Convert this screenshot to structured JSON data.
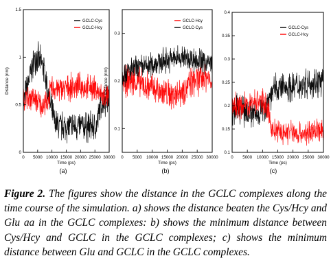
{
  "chart_data": [
    {
      "type": "line",
      "panel_label": "(a)",
      "xlabel": "Time (ps)",
      "ylabel": "Distance (nm)",
      "xlim": [
        0,
        30000
      ],
      "ylim": [
        0,
        1.5
      ],
      "xticks": [
        0,
        5000,
        10000,
        15000,
        20000,
        25000,
        30000
      ],
      "yticks": [
        0,
        0.5,
        1,
        1.5
      ],
      "ytick_labels": [
        "0",
        "0.5",
        "1",
        "1.5"
      ],
      "grid": false,
      "legend_position": "top-right",
      "series": [
        {
          "name": "GCLC-Cys",
          "color": "#000000",
          "x": [
            0,
            3000,
            4500,
            5500,
            7000,
            9000,
            11000,
            13000,
            15000,
            18000,
            21000,
            24000,
            25500,
            27000,
            28500,
            30000
          ],
          "y": [
            0.52,
            0.88,
            1.02,
            0.96,
            0.9,
            0.56,
            0.3,
            0.27,
            0.27,
            0.27,
            0.27,
            0.27,
            0.26,
            0.5,
            0.55,
            0.57
          ]
        },
        {
          "name": "GCLC-Hcy",
          "color": "#ff0000",
          "x": [
            0,
            3000,
            6000,
            8000,
            10000,
            13000,
            16000,
            19000,
            22000,
            25000,
            27000,
            30000
          ],
          "y": [
            0.55,
            0.58,
            0.5,
            0.5,
            0.68,
            0.66,
            0.68,
            0.7,
            0.68,
            0.67,
            0.6,
            0.57
          ]
        }
      ]
    },
    {
      "type": "line",
      "panel_label": "(b)",
      "xlabel": "Time (ps)",
      "ylabel": "Distance (nm)",
      "xlim": [
        0,
        30000
      ],
      "ylim": [
        0.05,
        0.35
      ],
      "xticks": [
        0,
        5000,
        10000,
        15000,
        20000,
        25000,
        30000
      ],
      "yticks": [
        0.1,
        0.2,
        0.3
      ],
      "ytick_labels": [
        "0.1",
        "0.2",
        "0.3"
      ],
      "grid": false,
      "legend_position": "top-right",
      "series": [
        {
          "name": "GCLC-Hcy",
          "color": "#ff0000",
          "x": [
            0,
            4000,
            8000,
            12000,
            16000,
            20000,
            24000,
            28000,
            30000
          ],
          "y": [
            0.2,
            0.2,
            0.19,
            0.18,
            0.17,
            0.18,
            0.2,
            0.21,
            0.2
          ]
        },
        {
          "name": "GCLC-Cys",
          "color": "#000000",
          "x": [
            0,
            4000,
            8000,
            12000,
            16000,
            20000,
            24000,
            28000,
            30000
          ],
          "y": [
            0.215,
            0.225,
            0.23,
            0.24,
            0.245,
            0.25,
            0.245,
            0.24,
            0.235
          ]
        }
      ]
    },
    {
      "type": "line",
      "panel_label": "(c)",
      "xlabel": "Time (ps)",
      "ylabel": "",
      "xlim": [
        0,
        30000
      ],
      "ylim": [
        0.1,
        0.4
      ],
      "xticks": [
        0,
        5000,
        10000,
        15000,
        20000,
        25000,
        30000
      ],
      "yticks": [
        0.1,
        0.15,
        0.2,
        0.25,
        0.3,
        0.35,
        0.4
      ],
      "ytick_labels": [
        "0.1",
        "0.15",
        "0.2",
        "0.25",
        "0.3",
        "0.35",
        "0.4"
      ],
      "grid": false,
      "legend_position": "top-right",
      "series": [
        {
          "name": "GCLC-Cys",
          "color": "#000000",
          "x": [
            0,
            4000,
            8000,
            11000,
            13000,
            16000,
            19000,
            22000,
            25000,
            28000,
            30000
          ],
          "y": [
            0.19,
            0.19,
            0.18,
            0.2,
            0.23,
            0.24,
            0.24,
            0.245,
            0.25,
            0.25,
            0.25
          ]
        },
        {
          "name": "GCLC-Hcy",
          "color": "#ff0000",
          "x": [
            0,
            4000,
            8000,
            11000,
            13000,
            16000,
            19000,
            22000,
            25000,
            28000,
            30000
          ],
          "y": [
            0.2,
            0.2,
            0.21,
            0.21,
            0.15,
            0.14,
            0.145,
            0.14,
            0.14,
            0.15,
            0.14
          ]
        }
      ]
    }
  ],
  "caption": {
    "label": "Figure 2.",
    "text": " The figures show the distance in the GCLC complexes along the time course of the simulation. a) shows the distance beaten the Cys/Hcy and Glu aa in the GCLC complexes: b) shows the minimum distance between Cys/Hcy and GCLC in the GCLC complexes; c) shows the minimum distance between Glu and GCLC in the GCLC complexes."
  }
}
